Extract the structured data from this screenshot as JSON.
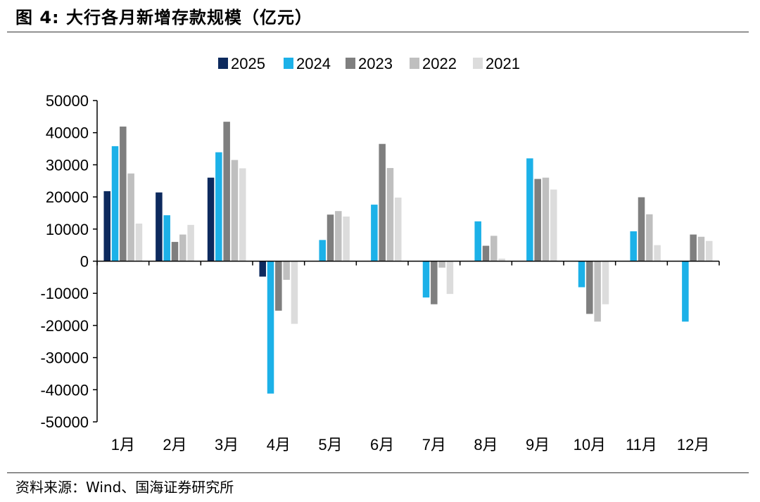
{
  "figure": {
    "title": "图 4:  大行各月新增存款规模（亿元）",
    "source": "资料来源：Wind、国海证券研究所"
  },
  "chart_data": {
    "type": "bar",
    "categories": [
      "1月",
      "2月",
      "3月",
      "4月",
      "5月",
      "6月",
      "7月",
      "8月",
      "9月",
      "10月",
      "11月",
      "12月"
    ],
    "series": [
      {
        "name": "2025",
        "color": "#0D2A5E",
        "values": [
          21800,
          21400,
          26000,
          -4800,
          null,
          null,
          null,
          null,
          null,
          null,
          null,
          null
        ]
      },
      {
        "name": "2024",
        "color": "#1CB1E8",
        "values": [
          35800,
          14300,
          33900,
          -41200,
          6600,
          17600,
          -11300,
          12400,
          32000,
          -8100,
          9300,
          -18800
        ]
      },
      {
        "name": "2023",
        "color": "#7F7F7F",
        "values": [
          41900,
          6000,
          43400,
          -15400,
          14500,
          36500,
          -13400,
          4800,
          25600,
          -16400,
          19900,
          8300
        ]
      },
      {
        "name": "2022",
        "color": "#BFBFBF",
        "values": [
          27300,
          8300,
          31500,
          -5800,
          15600,
          29000,
          -2000,
          7900,
          26000,
          -18800,
          14600,
          7600
        ]
      },
      {
        "name": "2021",
        "color": "#DCDCDC",
        "values": [
          11700,
          11300,
          28900,
          -19500,
          13900,
          19800,
          -10200,
          800,
          22300,
          -13400,
          5000,
          6300
        ]
      }
    ],
    "ylim": [
      -50000,
      50000
    ],
    "yticks": [
      -50000,
      -40000,
      -30000,
      -20000,
      -10000,
      0,
      10000,
      20000,
      30000,
      40000,
      50000
    ],
    "ytick_labels": [
      "-50000",
      "-40000",
      "-30000",
      "-20000",
      "-10000",
      "0",
      "10000",
      "20000",
      "30000",
      "40000",
      "50000"
    ],
    "xlabel": "",
    "ylabel": "",
    "grid": false,
    "legend": "top-center"
  }
}
